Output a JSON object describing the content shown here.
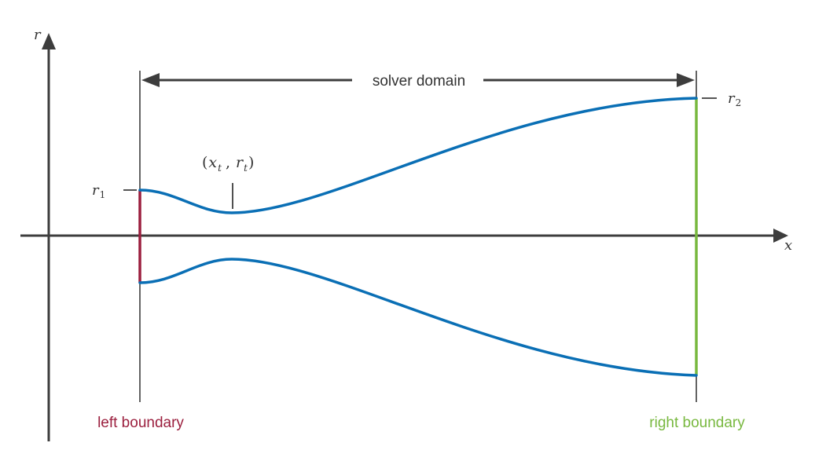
{
  "colors": {
    "axis": "#3d3d3d",
    "contour": "#0a6fb5",
    "left_boundary": "#9b1f3e",
    "right_boundary": "#78b83f",
    "text": "#333333"
  },
  "axes": {
    "x_label": "x",
    "r_label": "r"
  },
  "labels": {
    "domain": "solver domain",
    "left_boundary": "left boundary",
    "right_boundary": "right boundary",
    "r1_symbol": "r",
    "r1_subscript": "1",
    "r2_symbol": "r",
    "r2_subscript": "2",
    "throat_open": "(",
    "throat_x": "x",
    "throat_x_sub": "t",
    "throat_comma": ",",
    "throat_r": "r",
    "throat_r_sub": "t",
    "throat_close": ")"
  }
}
